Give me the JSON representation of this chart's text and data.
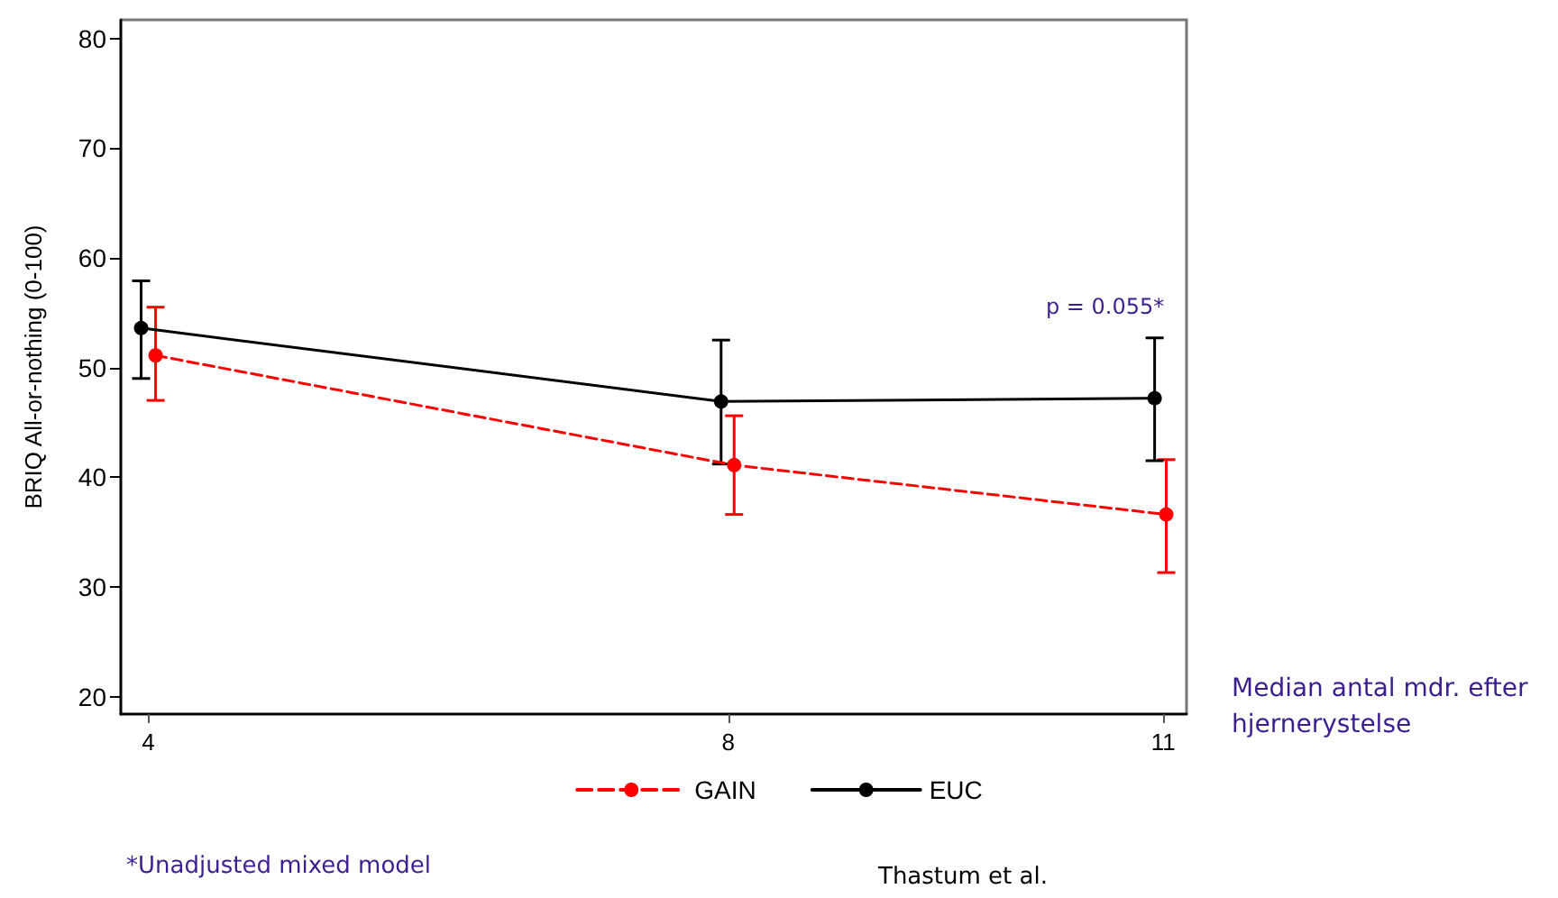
{
  "chart_data": {
    "type": "line",
    "ylabel": "BRIQ All-or-nothing (0-100)",
    "xlabel": "Median antal mdr. efter hjernerystelse",
    "xlim": [
      3.81,
      11.16
    ],
    "xticks": [
      4,
      8,
      11
    ],
    "ylim": [
      18.4,
      81.7
    ],
    "yticks": [
      20,
      30,
      40,
      50,
      60,
      70,
      80
    ],
    "series": [
      {
        "name": "GAIN",
        "color": "#ff0000",
        "line_style": "dashed",
        "x": [
          4.05,
          8.04,
          11.02
        ],
        "values": [
          51.1,
          41.1,
          36.6
        ],
        "errors": [
          [
            47.0,
            55.5
          ],
          [
            36.6,
            45.6
          ],
          [
            31.3,
            41.6
          ]
        ]
      },
      {
        "name": "EUC",
        "color": "#000000",
        "line_style": "solid",
        "x": [
          3.95,
          7.95,
          10.94
        ],
        "values": [
          53.6,
          46.9,
          47.2
        ],
        "errors": [
          [
            49.0,
            57.9
          ],
          [
            41.2,
            52.5
          ],
          [
            41.5,
            52.7
          ]
        ]
      }
    ],
    "marker": "circle",
    "grid": false,
    "legend": "bottom",
    "annotations": [
      "p = 0.055*",
      "*Unadjusted mixed model",
      "Thastum et al."
    ]
  }
}
